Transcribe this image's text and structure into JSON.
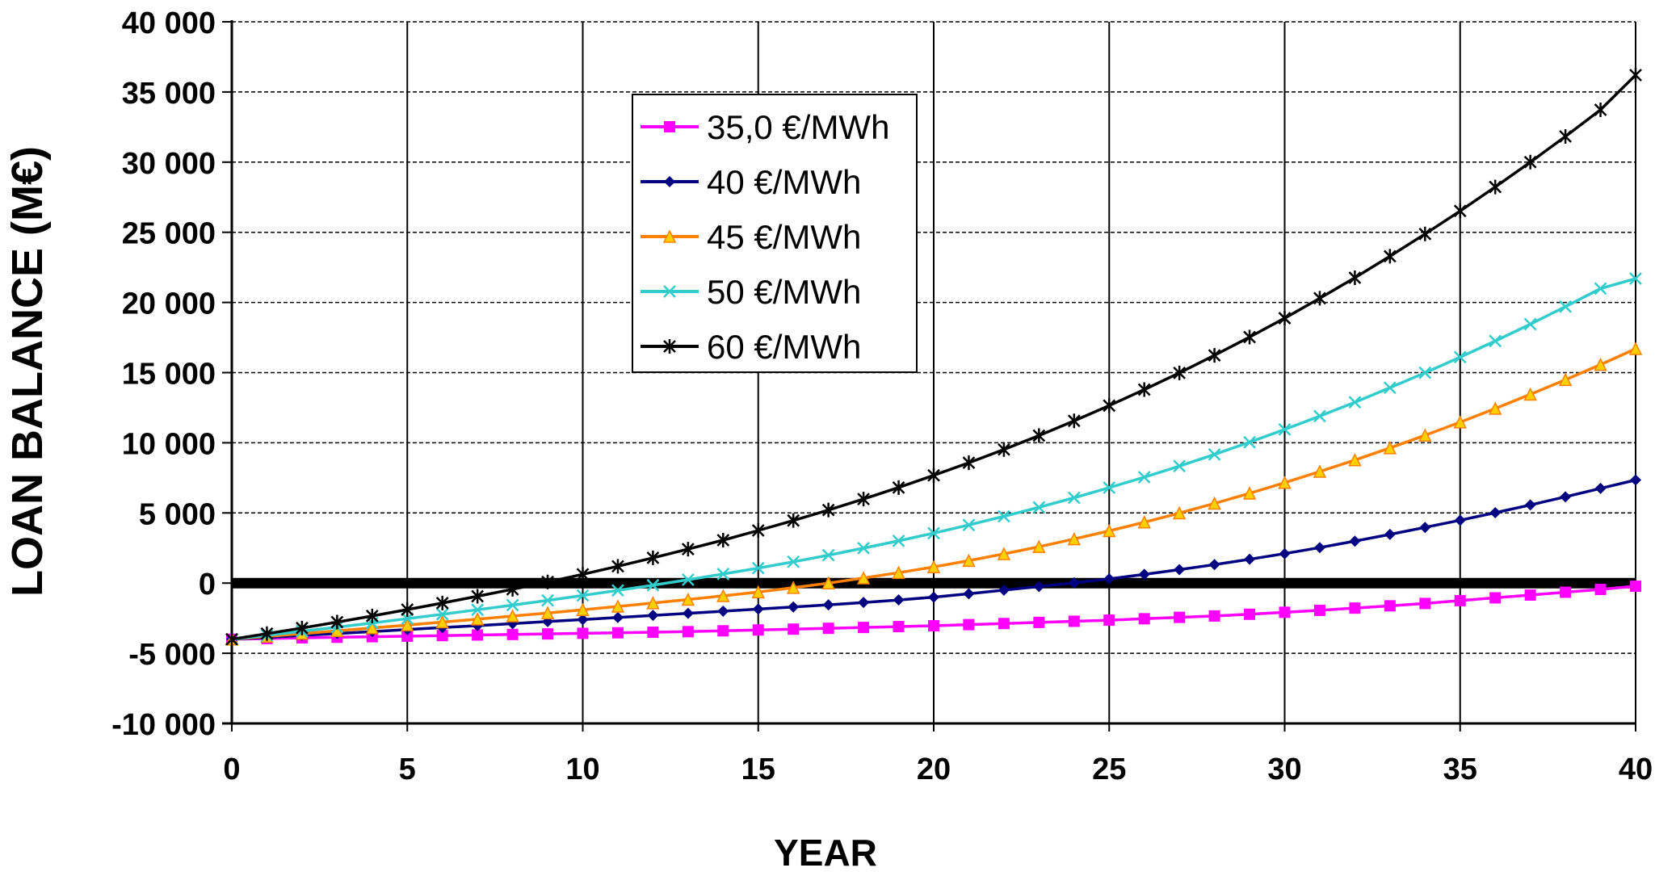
{
  "chart_data": {
    "type": "line",
    "title": "",
    "xlabel": "YEAR",
    "ylabel": "LOAN BALANCE (M€)",
    "xlim": [
      0,
      40
    ],
    "ylim": [
      -10000,
      40000
    ],
    "x_ticks": [
      0,
      5,
      10,
      15,
      20,
      25,
      30,
      35,
      40
    ],
    "x_tick_labels": [
      "0",
      "5",
      "10",
      "15",
      "20",
      "25",
      "30",
      "35",
      "40"
    ],
    "y_ticks": [
      -10000,
      -5000,
      0,
      5000,
      10000,
      15000,
      20000,
      25000,
      30000,
      35000,
      40000
    ],
    "y_tick_labels": [
      "-10 000",
      "-5 000",
      "0",
      "5 000",
      "10 000",
      "15 000",
      "20 000",
      "25 000",
      "30 000",
      "35 000",
      "40 000"
    ],
    "grid": true,
    "legend_position": "upper-left",
    "zero_line": {
      "y": 0,
      "color": "#000000"
    },
    "x": [
      0,
      1,
      2,
      3,
      4,
      5,
      6,
      7,
      8,
      9,
      10,
      11,
      12,
      13,
      14,
      15,
      16,
      17,
      18,
      19,
      20,
      21,
      22,
      23,
      24,
      25,
      26,
      27,
      28,
      29,
      30,
      31,
      32,
      33,
      34,
      35,
      36,
      37,
      38,
      39,
      40
    ],
    "series": [
      {
        "name": "35,0 €/MWh",
        "color": "#ff00ff",
        "marker": "square",
        "values": [
          -4000,
          -3950,
          -3900,
          -3860,
          -3820,
          -3780,
          -3740,
          -3700,
          -3660,
          -3620,
          -3580,
          -3540,
          -3500,
          -3460,
          -3400,
          -3340,
          -3280,
          -3220,
          -3160,
          -3100,
          -3040,
          -2960,
          -2880,
          -2800,
          -2720,
          -2640,
          -2540,
          -2440,
          -2340,
          -2220,
          -2080,
          -1940,
          -1780,
          -1620,
          -1450,
          -1250,
          -1050,
          -850,
          -650,
          -450,
          -220
        ]
      },
      {
        "name": "40 €/MWh",
        "color": "#000080",
        "marker": "diamond",
        "values": [
          -4000,
          -3870,
          -3730,
          -3590,
          -3450,
          -3310,
          -3170,
          -3030,
          -2890,
          -2740,
          -2600,
          -2450,
          -2300,
          -2150,
          -2000,
          -1850,
          -1700,
          -1550,
          -1380,
          -1200,
          -1000,
          -760,
          -500,
          -240,
          20,
          300,
          620,
          960,
          1320,
          1700,
          2100,
          2530,
          2990,
          3470,
          3970,
          4480,
          5020,
          5570,
          6150,
          6750,
          7350
        ]
      },
      {
        "name": "45 €/MWh",
        "color": "#ff8000",
        "marker": "triangle",
        "values": [
          -4000,
          -3800,
          -3600,
          -3400,
          -3200,
          -2990,
          -2780,
          -2570,
          -2350,
          -2130,
          -1900,
          -1660,
          -1420,
          -1170,
          -910,
          -640,
          -330,
          0,
          360,
          740,
          1150,
          1600,
          2080,
          2590,
          3140,
          3720,
          4340,
          4990,
          5680,
          6400,
          7160,
          7950,
          8770,
          9630,
          10530,
          11470,
          12440,
          13450,
          14490,
          15570,
          16700
        ]
      },
      {
        "name": "50 €/MWh",
        "color": "#33cccc",
        "marker": "x",
        "values": [
          -4000,
          -3720,
          -3430,
          -3140,
          -2840,
          -2530,
          -2220,
          -1900,
          -1570,
          -1230,
          -880,
          -520,
          -150,
          240,
          650,
          1070,
          1520,
          1990,
          2490,
          3010,
          3560,
          4140,
          4760,
          5400,
          6080,
          6800,
          7550,
          8340,
          9170,
          10040,
          10950,
          11900,
          12890,
          13920,
          14990,
          16100,
          17250,
          18450,
          19700,
          20990,
          21700
        ]
      },
      {
        "name": "60 €/MWh",
        "color": "#000000",
        "marker": "asterisk",
        "values": [
          -4000,
          -3600,
          -3200,
          -2780,
          -2340,
          -1890,
          -1420,
          -940,
          -440,
          80,
          630,
          1200,
          1800,
          2420,
          3060,
          3750,
          4460,
          5210,
          5990,
          6810,
          7680,
          8580,
          9520,
          10510,
          11560,
          12650,
          13790,
          14980,
          16230,
          17530,
          18880,
          20300,
          21760,
          23290,
          24880,
          26520,
          28230,
          30000,
          31830,
          33730,
          36200
        ]
      }
    ]
  }
}
